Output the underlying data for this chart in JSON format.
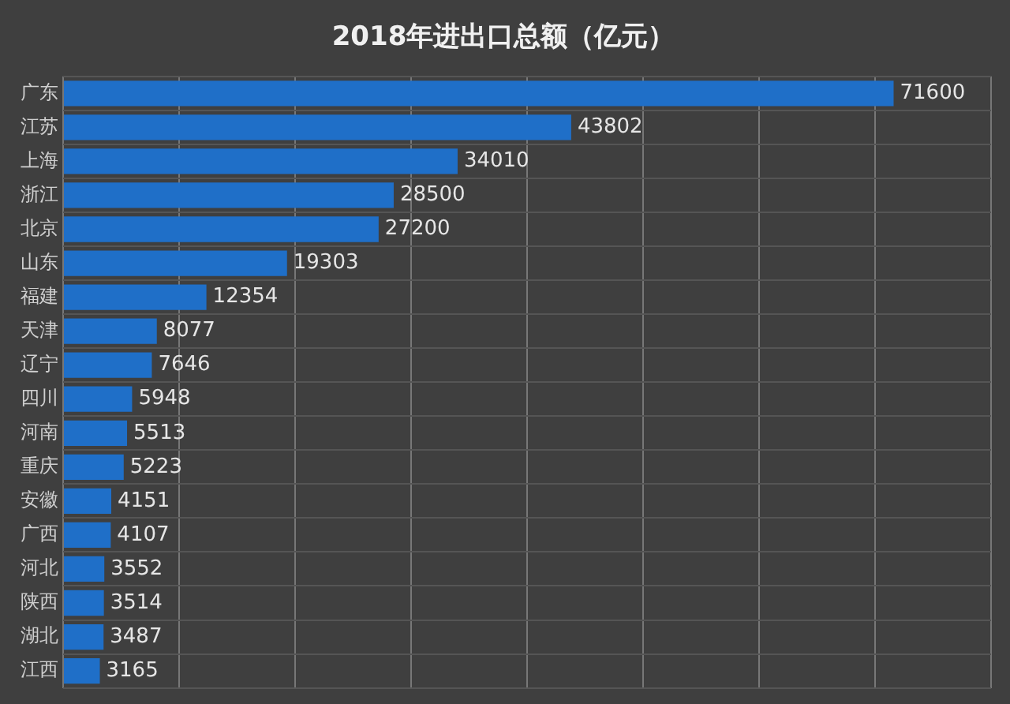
{
  "chart_data": {
    "type": "bar",
    "orientation": "horizontal",
    "title": "2018年进出口总额（亿元）",
    "categories": [
      "广东",
      "江苏",
      "上海",
      "浙江",
      "北京",
      "山东",
      "福建",
      "天津",
      "辽宁",
      "四川",
      "河南",
      "重庆",
      "安徽",
      "广西",
      "河北",
      "陕西",
      "湖北",
      "江西"
    ],
    "values": [
      71600,
      43802,
      34010,
      28500,
      27200,
      19303,
      12354,
      8077,
      7646,
      5948,
      5513,
      5223,
      4151,
      4107,
      3552,
      3514,
      3487,
      3165
    ],
    "color": "#1f6fc8",
    "xlim": [
      0,
      80000
    ],
    "xticks": [
      {
        "value": 0,
        "label": null
      },
      {
        "value": 10000,
        "label": null
      },
      {
        "value": 20000,
        "label": null
      },
      {
        "value": 30000,
        "label": null
      },
      {
        "value": 40000,
        "label": null
      },
      {
        "value": 50000,
        "label": null
      },
      {
        "value": 60000,
        "label": null
      },
      {
        "value": 70000,
        "label": null
      },
      {
        "value": 80000,
        "label": null
      }
    ],
    "tick_labels": "y",
    "grid": true,
    "data_labels": true
  }
}
